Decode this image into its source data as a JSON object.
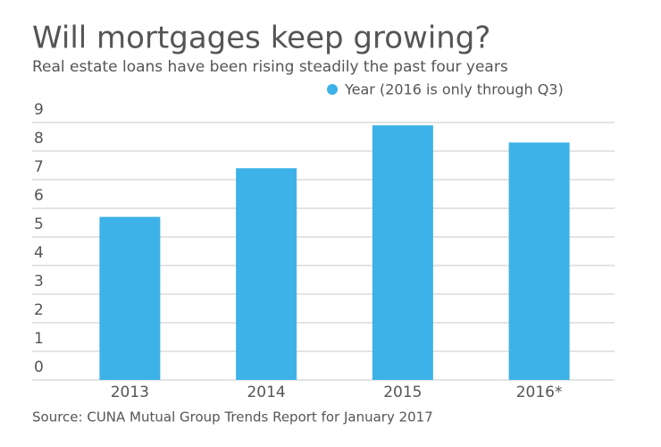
{
  "chart_data": {
    "type": "bar",
    "title": "Will mortgages keep growing?",
    "subtitle": "Real estate loans have been rising steadily the past four years",
    "source": "Source: CUNA Mutual Group Trends Report for January 2017",
    "categories": [
      "2013",
      "2014",
      "2015",
      "2016*"
    ],
    "series": [
      {
        "name": "Year (2016 is only through Q3)",
        "color": "#3db2e8",
        "values": [
          5.7,
          7.4,
          8.9,
          8.3
        ]
      }
    ],
    "ylim": [
      0,
      9
    ],
    "yticks": [
      0,
      1,
      2,
      3,
      4,
      5,
      6,
      7,
      8,
      9
    ],
    "grid": true,
    "legend": "top-right"
  }
}
